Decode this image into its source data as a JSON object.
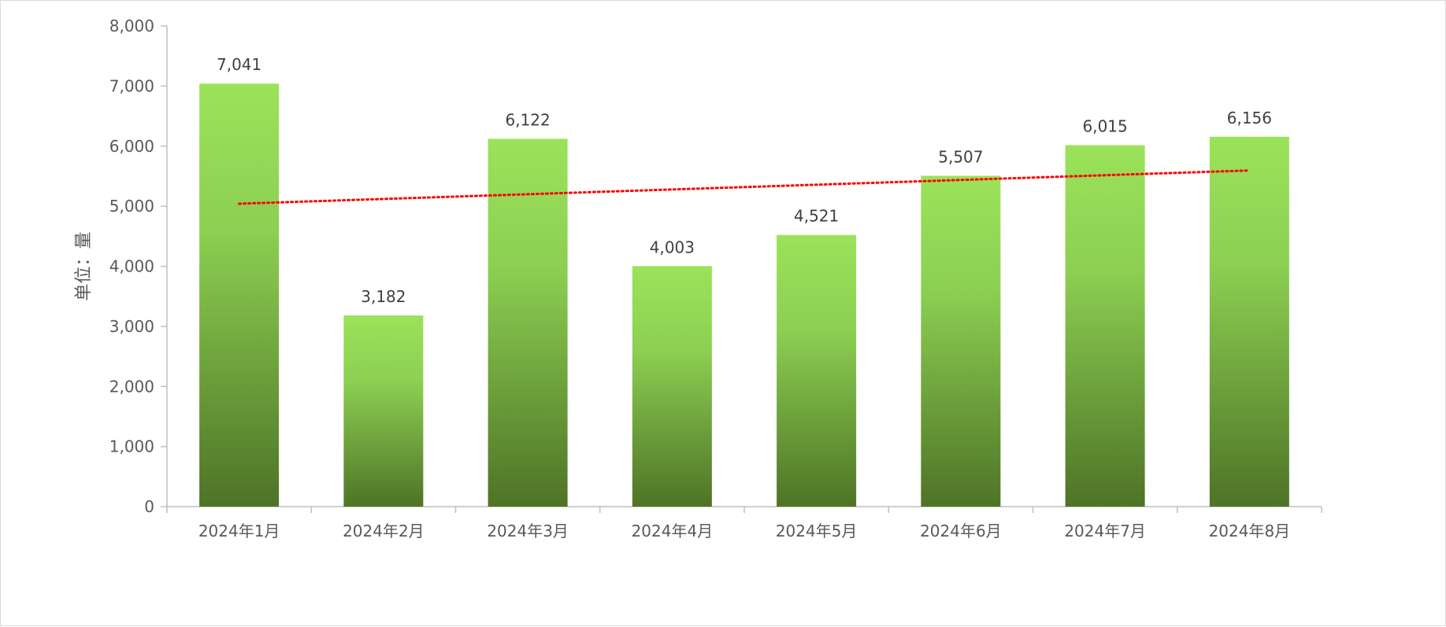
{
  "chart_data": {
    "type": "bar",
    "categories": [
      "2024年1月",
      "2024年2月",
      "2024年3月",
      "2024年4月",
      "2024年5月",
      "2024年6月",
      "2024年7月",
      "2024年8月"
    ],
    "values": [
      7041,
      3182,
      6122,
      4003,
      4521,
      5507,
      6015,
      6156
    ],
    "data_labels": [
      "7,041",
      "3,182",
      "6,122",
      "4,003",
      "4,521",
      "5,507",
      "6,015",
      "6,156"
    ],
    "title": "",
    "xlabel": "",
    "ylabel": "单位：量",
    "ylim": [
      0,
      8000
    ],
    "yticks": [
      0,
      1000,
      2000,
      3000,
      4000,
      5000,
      6000,
      7000,
      8000
    ],
    "ytick_labels": [
      "0",
      "1,000",
      "2,000",
      "3,000",
      "4,000",
      "5,000",
      "6,000",
      "7,000",
      "8,000"
    ],
    "grid": false,
    "legend": "none",
    "trendline": {
      "type": "linear",
      "style": "dotted",
      "color": "#ff0000"
    },
    "colors": {
      "bar_top": "#9be35a",
      "bar_bottom": "#4e7326",
      "axis": "#bfbfbf"
    }
  }
}
